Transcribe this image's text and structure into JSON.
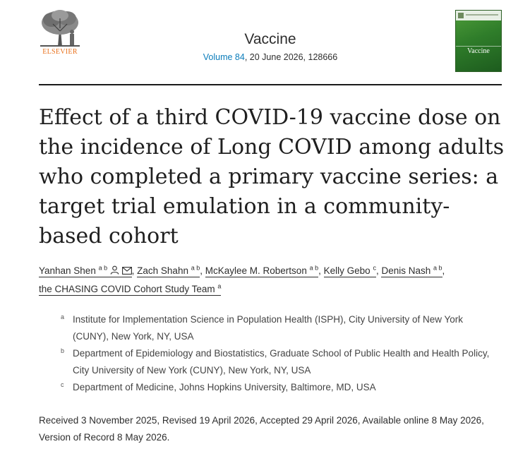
{
  "publisher": {
    "name": "ELSEVIER"
  },
  "journal": {
    "title": "Vaccine",
    "volume_link": "Volume 84",
    "date_id": ", 20 June 2026, 128666",
    "cover_name": "Vaccine"
  },
  "article": {
    "title": "Effect of a third COVID-19 vaccine dose on the incidence of Long COVID among adults who completed a primary vaccine series: a target trial emulation in a community-based cohort"
  },
  "authors": [
    {
      "name": "Yanhan Shen",
      "sup": "a b"
    },
    {
      "name": "Zach Shahn",
      "sup": "a b"
    },
    {
      "name": "McKaylee M. Robertson",
      "sup": "a b"
    },
    {
      "name": "Kelly Gebo",
      "sup": "c"
    },
    {
      "name": "Denis Nash",
      "sup": "a b"
    },
    {
      "name": "the CHASING COVID Cohort Study Team",
      "sup": "a"
    }
  ],
  "affiliations": [
    {
      "label": "a",
      "text": "Institute for Implementation Science in Population Health (ISPH), City University of New York (CUNY), New York, NY, USA"
    },
    {
      "label": "b",
      "text": "Department of Epidemiology and Biostatistics, Graduate School of Public Health and Health Policy, City University of New York (CUNY), New York, NY, USA"
    },
    {
      "label": "c",
      "text": "Department of Medicine, Johns Hopkins University, Baltimore, MD, USA"
    }
  ],
  "history": "Received 3 November 2025, Revised 19 April 2026, Accepted 29 April 2026, Available online 8 May 2026, Version of Record 8 May 2026.",
  "colors": {
    "link": "#0c7dbb",
    "elsevier_orange": "#e9711c",
    "cover_green": "#2f7d2a"
  },
  "icons": [
    "elsevier-tree-logo",
    "person-icon",
    "envelope-icon"
  ]
}
